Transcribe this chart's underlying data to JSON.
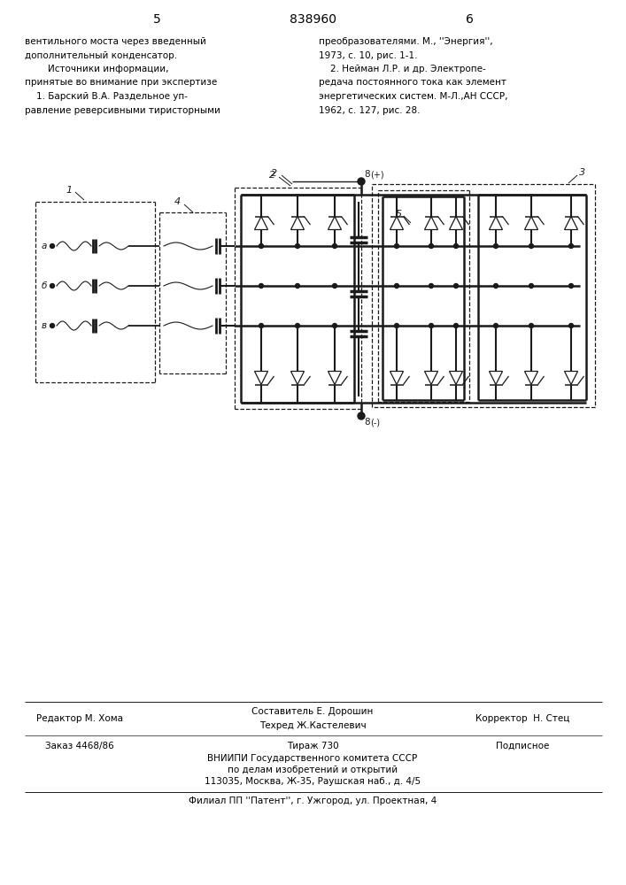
{
  "page_number_left": "5",
  "page_number_center": "838960",
  "page_number_right": "6",
  "text_left_col": [
    "вентильного моста через введенный",
    "дополнительный конденсатор.",
    "        Источники информации,",
    "принятые во внимание при экспертизе",
    "    1. Барский В.А. Раздельное уп-",
    "равление реверсивными тиристорными"
  ],
  "text_right_col": [
    "преобразователями. М., ''Энергия'',",
    "1973, с. 10, рис. 1-1.",
    "    2. Нейман Л.Р. и др. Электропе-",
    "редача постоянного тока как элемент",
    "энергетических систем. М-Л.,АН СССР,",
    "1962, с. 127, рис. 28."
  ],
  "bottom_line1_left": "Редактор М. Хома",
  "bottom_line1_center": "Составитель Е. Дорошин",
  "bottom_line1_center2": "Техред Ж.Кастелевич",
  "bottom_line1_right": "Корректор  Н. Стец",
  "bottom_line2_left": "Заказ 4468/86",
  "bottom_line2_center": "Тираж 730",
  "bottom_line2_right": "Подписное",
  "bottom_line3": "ВНИИПИ Государственного комитета СССР",
  "bottom_line4": "по делам изобретений и открытий",
  "bottom_line5": "113035, Москва, Ж-35, Раушская наб., д. 4/5",
  "bottom_line6": "Филиал ПП ''Патент'', г. Ужгород, ул. Проектная, 4",
  "bg_color": "#ffffff",
  "text_color": "#000000",
  "diagram_color": "#1a1a1a"
}
